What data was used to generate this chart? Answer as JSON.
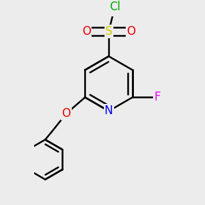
{
  "bg_color": "#ececec",
  "bond_color": "#000000",
  "bond_width": 1.8,
  "atom_colors": {
    "N": "#0000ee",
    "O": "#ee0000",
    "S": "#cccc00",
    "F": "#ee00ee",
    "Cl": "#00aa00"
  },
  "font_size": 12,
  "figsize": [
    3.0,
    3.0
  ],
  "dpi": 100
}
